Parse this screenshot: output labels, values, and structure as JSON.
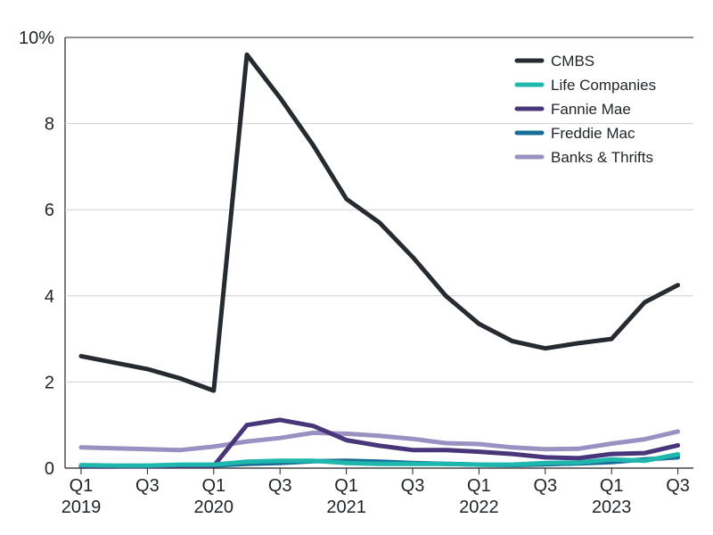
{
  "chart_data": {
    "type": "line",
    "title": "",
    "xlabel": "",
    "ylabel": "",
    "ylim": [
      0,
      10
    ],
    "yticks": [
      {
        "value": 0,
        "label": "0"
      },
      {
        "value": 2,
        "label": "2"
      },
      {
        "value": 4,
        "label": "4"
      },
      {
        "value": 6,
        "label": "6"
      },
      {
        "value": 8,
        "label": "8"
      },
      {
        "value": 10,
        "label": "10%"
      }
    ],
    "categories": [
      "Q1 2019",
      "Q2 2019",
      "Q3 2019",
      "Q4 2019",
      "Q1 2020",
      "Q2 2020",
      "Q3 2020",
      "Q4 2020",
      "Q1 2021",
      "Q2 2021",
      "Q3 2021",
      "Q4 2021",
      "Q1 2022",
      "Q2 2022",
      "Q3 2022",
      "Q4 2022",
      "Q1 2023",
      "Q2 2023",
      "Q3 2023"
    ],
    "xticks": [
      {
        "index": 0,
        "line1": "Q1",
        "line2": "2019"
      },
      {
        "index": 2,
        "line1": "Q3",
        "line2": ""
      },
      {
        "index": 4,
        "line1": "Q1",
        "line2": "2020"
      },
      {
        "index": 6,
        "line1": "Q3",
        "line2": ""
      },
      {
        "index": 8,
        "line1": "Q1",
        "line2": "2021"
      },
      {
        "index": 10,
        "line1": "Q3",
        "line2": ""
      },
      {
        "index": 12,
        "line1": "Q1",
        "line2": "2022"
      },
      {
        "index": 14,
        "line1": "Q3",
        "line2": ""
      },
      {
        "index": 16,
        "line1": "Q1",
        "line2": "2023"
      },
      {
        "index": 18,
        "line1": "Q3",
        "line2": ""
      }
    ],
    "grid": true,
    "legend_position": "top-right",
    "series": [
      {
        "name": "CMBS",
        "color": "#252b30",
        "values": [
          2.6,
          2.45,
          2.3,
          2.08,
          1.8,
          9.6,
          8.6,
          7.5,
          6.25,
          5.7,
          4.9,
          4.0,
          3.35,
          2.95,
          2.78,
          2.9,
          3.0,
          3.85,
          4.25
        ]
      },
      {
        "name": "Life Companies",
        "color": "#1eb7ae",
        "values": [
          0.07,
          0.06,
          0.06,
          0.08,
          0.08,
          0.15,
          0.17,
          0.17,
          0.12,
          0.1,
          0.1,
          0.1,
          0.08,
          0.08,
          0.12,
          0.13,
          0.2,
          0.17,
          0.32
        ]
      },
      {
        "name": "Fannie Mae",
        "color": "#48357a",
        "values": [
          0.04,
          0.04,
          0.05,
          0.05,
          0.05,
          1.0,
          1.12,
          0.98,
          0.65,
          0.52,
          0.42,
          0.42,
          0.38,
          0.33,
          0.25,
          0.23,
          0.33,
          0.35,
          0.53
        ]
      },
      {
        "name": "Freddie Mac",
        "color": "#186e96",
        "values": [
          0.04,
          0.05,
          0.05,
          0.06,
          0.06,
          0.1,
          0.12,
          0.16,
          0.17,
          0.15,
          0.12,
          0.1,
          0.08,
          0.07,
          0.09,
          0.11,
          0.14,
          0.2,
          0.25
        ]
      },
      {
        "name": "Banks & Thrifts",
        "color": "#9891c1",
        "values": [
          0.48,
          0.46,
          0.44,
          0.42,
          0.5,
          0.62,
          0.7,
          0.82,
          0.8,
          0.75,
          0.68,
          0.58,
          0.56,
          0.48,
          0.44,
          0.45,
          0.57,
          0.67,
          0.85
        ]
      }
    ]
  }
}
